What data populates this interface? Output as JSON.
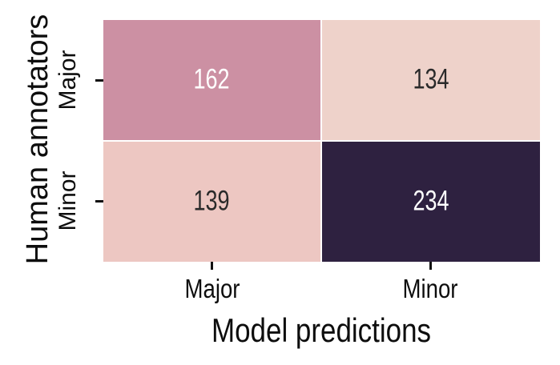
{
  "figure": {
    "background": "#ffffff",
    "axis_text_color": "#0d0d0d",
    "tick_color": "#111111",
    "grid_gap_color": "#ffffff"
  },
  "chart_data": {
    "type": "heatmap",
    "title": "",
    "xlabel": "Model predictions",
    "ylabel": "Human annotators",
    "x_categories": [
      "Major",
      "Minor"
    ],
    "y_categories": [
      "Major",
      "Minor"
    ],
    "series": [
      {
        "name": "Major",
        "values": [
          162,
          134
        ]
      },
      {
        "name": "Minor",
        "values": [
          139,
          234
        ]
      }
    ],
    "cells": [
      {
        "row": "Major",
        "col": "Major",
        "value": 162,
        "bg": "#cc90a3",
        "text_color": "#ffffff"
      },
      {
        "row": "Major",
        "col": "Minor",
        "value": 134,
        "bg": "#eed2ca",
        "text_color": "#2a2a2a"
      },
      {
        "row": "Minor",
        "col": "Major",
        "value": 139,
        "bg": "#edc7c2",
        "text_color": "#2a2a2a"
      },
      {
        "row": "Minor",
        "col": "Minor",
        "value": 234,
        "bg": "#2e2140",
        "text_color": "#ffffff"
      }
    ],
    "legend": "none",
    "grid": "off"
  }
}
